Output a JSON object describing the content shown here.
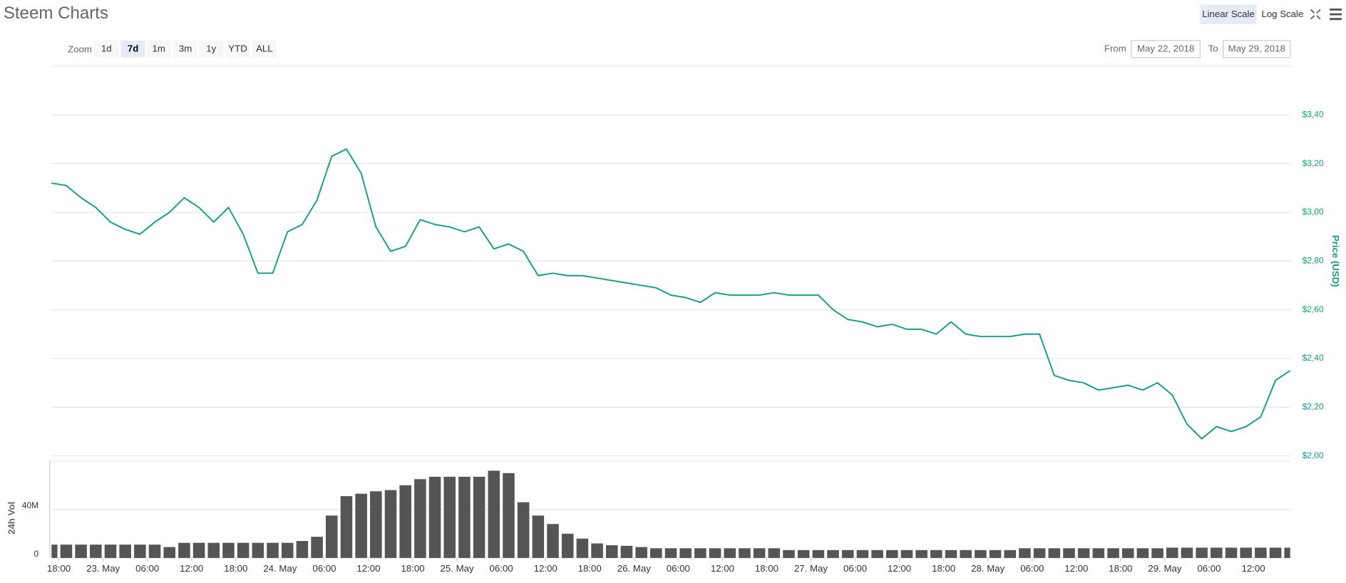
{
  "header": {
    "title": "Steem Charts",
    "scale_buttons": [
      "Linear Scale",
      "Log Scale"
    ],
    "selected_scale": 0
  },
  "zoom": {
    "label": "Zoom",
    "options": [
      "1d",
      "7d",
      "1m",
      "3m",
      "1y",
      "YTD",
      "ALL"
    ],
    "selected": 1
  },
  "range": {
    "from_label": "From",
    "from": "May 22, 2018",
    "to_label": "To",
    "to": "May 29, 2018"
  },
  "chart_data": [
    {
      "type": "line",
      "y_axis_label": "Price (USD)",
      "color": "#13a07c",
      "grid": true,
      "x": [
        0,
        2,
        4,
        6,
        8,
        10,
        12,
        14,
        16,
        18,
        20,
        22,
        24,
        26,
        28,
        30,
        32,
        34,
        36,
        38,
        40,
        42,
        44,
        46,
        48,
        50,
        52,
        54,
        56,
        58,
        60,
        62,
        64,
        66,
        68,
        70,
        72,
        74,
        76,
        78,
        80,
        82,
        84,
        86,
        88,
        90,
        92,
        94,
        96,
        98,
        100,
        102,
        104,
        106,
        108,
        110,
        112,
        114,
        116,
        118,
        120,
        122,
        124,
        126,
        128,
        130,
        132,
        134,
        136,
        138,
        140,
        142,
        144,
        146,
        148,
        150,
        152,
        154,
        156,
        158,
        160,
        162,
        164,
        166,
        168
      ],
      "values": [
        3.12,
        3.11,
        3.06,
        3.02,
        2.96,
        2.93,
        2.91,
        2.96,
        3.0,
        3.06,
        3.02,
        2.96,
        3.02,
        2.91,
        2.75,
        2.75,
        2.92,
        2.95,
        3.05,
        3.23,
        3.26,
        3.16,
        2.94,
        2.84,
        2.86,
        2.97,
        2.95,
        2.94,
        2.92,
        2.94,
        2.85,
        2.87,
        2.84,
        2.74,
        2.75,
        2.74,
        2.74,
        2.73,
        2.72,
        2.71,
        2.7,
        2.69,
        2.66,
        2.65,
        2.63,
        2.67,
        2.66,
        2.66,
        2.66,
        2.67,
        2.66,
        2.66,
        2.66,
        2.6,
        2.56,
        2.55,
        2.53,
        2.54,
        2.52,
        2.52,
        2.5,
        2.55,
        2.5,
        2.49,
        2.49,
        2.49,
        2.5,
        2.5,
        2.33,
        2.31,
        2.3,
        2.27,
        2.28,
        2.29,
        2.27,
        2.3,
        2.25,
        2.13,
        2.07,
        2.12,
        2.1,
        2.12,
        2.16,
        2.31,
        2.35
      ],
      "xlim": [
        0,
        168
      ],
      "ylim": [
        2,
        3.6
      ],
      "yticks": [
        {
          "value": 2,
          "label": "$2,00"
        },
        {
          "value": 2.2,
          "label": "$2,20"
        },
        {
          "value": 2.4,
          "label": "$2,40"
        },
        {
          "value": 2.6,
          "label": "$2,60"
        },
        {
          "value": 2.8,
          "label": "$2,80"
        },
        {
          "value": 3,
          "label": "$3,00"
        },
        {
          "value": 3.2,
          "label": "$3,20"
        },
        {
          "value": 3.4,
          "label": "$3,40"
        }
      ]
    },
    {
      "type": "bar",
      "y_axis_label": "24h Vol",
      "color": "#555555",
      "grid": true,
      "x": [
        0,
        2,
        4,
        6,
        8,
        10,
        12,
        14,
        16,
        18,
        20,
        22,
        24,
        26,
        28,
        30,
        32,
        34,
        36,
        38,
        40,
        42,
        44,
        46,
        48,
        50,
        52,
        54,
        56,
        58,
        60,
        62,
        64,
        66,
        68,
        70,
        72,
        74,
        76,
        78,
        80,
        82,
        84,
        86,
        88,
        90,
        92,
        94,
        96,
        98,
        100,
        102,
        104,
        106,
        108,
        110,
        112,
        114,
        116,
        118,
        120,
        122,
        124,
        126,
        128,
        130,
        132,
        134,
        136,
        138,
        140,
        142,
        144,
        146,
        148,
        150,
        152,
        154,
        156,
        158,
        160,
        162,
        164,
        166,
        168
      ],
      "values": [
        11000000,
        11000000,
        11000000,
        11000000,
        11000000,
        11000000,
        11000000,
        11000000,
        9000000,
        12500000,
        12500000,
        12500000,
        12500000,
        12500000,
        12500000,
        12500000,
        12500000,
        14000000,
        17500000,
        35000000,
        51000000,
        53000000,
        55000000,
        56000000,
        60000000,
        65000000,
        67000000,
        67000000,
        67000000,
        67000000,
        72000000,
        70000000,
        46000000,
        35000000,
        28000000,
        20000000,
        16000000,
        12000000,
        10500000,
        10000000,
        9000000,
        8000000,
        8000000,
        8000000,
        8000000,
        8000000,
        8000000,
        8000000,
        8000000,
        8000000,
        6500000,
        6500000,
        6500000,
        6500000,
        6500000,
        6500000,
        6500000,
        6500000,
        6500000,
        6500000,
        6500000,
        6500000,
        6500000,
        6500000,
        6500000,
        6500000,
        8000000,
        8000000,
        8000000,
        8000000,
        8000000,
        8000000,
        8000000,
        8000000,
        8000000,
        8000000,
        8500000,
        8500000,
        8500000,
        8500000,
        8500000,
        8500000,
        8500000,
        8500000,
        8500000
      ],
      "xlim": [
        0,
        168
      ],
      "ylim": [
        0,
        80000000
      ],
      "yticks": [
        0,
        {
          "value": 40000000,
          "label": "40M"
        }
      ],
      "xticks": [
        {
          "value": 1,
          "label": "18:00"
        },
        {
          "value": 7,
          "label": "23. May"
        },
        {
          "value": 13,
          "label": "06:00"
        },
        {
          "value": 19,
          "label": "12:00"
        },
        {
          "value": 25,
          "label": "18:00"
        },
        {
          "value": 31,
          "label": "24. May"
        },
        {
          "value": 37,
          "label": "06:00"
        },
        {
          "value": 43,
          "label": "12:00"
        },
        {
          "value": 49,
          "label": "18:00"
        },
        {
          "value": 55,
          "label": "25. May"
        },
        {
          "value": 61,
          "label": "06:00"
        },
        {
          "value": 67,
          "label": "12:00"
        },
        {
          "value": 73,
          "label": "18:00"
        },
        {
          "value": 79,
          "label": "26. May"
        },
        {
          "value": 85,
          "label": "06:00"
        },
        {
          "value": 91,
          "label": "12:00"
        },
        {
          "value": 97,
          "label": "18:00"
        },
        {
          "value": 103,
          "label": "27. May"
        },
        {
          "value": 109,
          "label": "06:00"
        },
        {
          "value": 115,
          "label": "12:00"
        },
        {
          "value": 121,
          "label": "18:00"
        },
        {
          "value": 127,
          "label": "28. May"
        },
        {
          "value": 133,
          "label": "06:00"
        },
        {
          "value": 139,
          "label": "12:00"
        },
        {
          "value": 145,
          "label": "18:00"
        },
        {
          "value": 151,
          "label": "29. May"
        },
        {
          "value": 157,
          "label": "06:00"
        },
        {
          "value": 163,
          "label": "12:00"
        }
      ]
    }
  ]
}
